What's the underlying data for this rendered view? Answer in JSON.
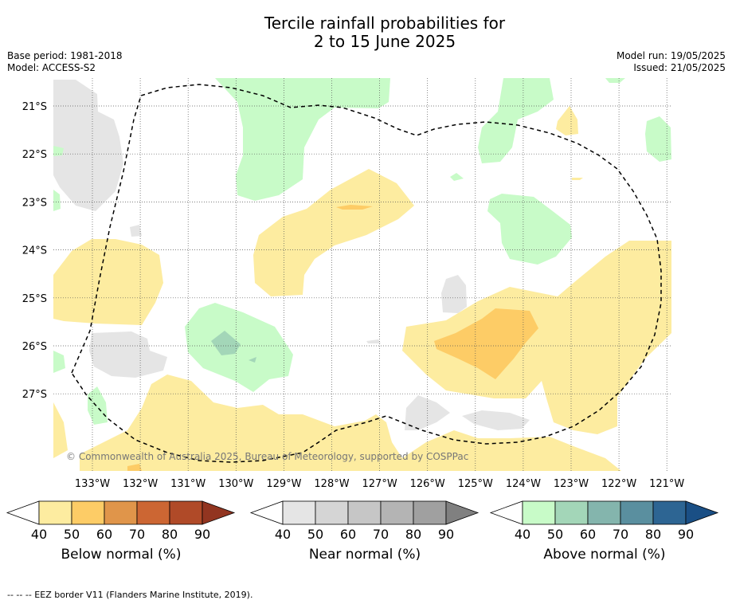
{
  "title_line1": "Tercile rainfall probabilities for",
  "title_line2": "2 to 15 June 2025",
  "base_period": "Base period: 1981-2018",
  "model": "Model: ACCESS-S2",
  "model_run": "Model run: 19/05/2025",
  "issued": "Issued: 21/05/2025",
  "copyright": "© Commonwealth of Australia 2025, Bureau of Meteorology, supported by COSPPac",
  "footnote": "-- -- -- EEZ border V11 (Flanders Marine Institute, 2019).",
  "map": {
    "lon_labels": [
      "133°W",
      "132°W",
      "131°W",
      "130°W",
      "129°W",
      "128°W",
      "127°W",
      "126°W",
      "125°W",
      "124°W",
      "123°W",
      "122°W",
      "121°W"
    ],
    "lat_labels": [
      "21°S",
      "22°S",
      "23°S",
      "24°S",
      "25°S",
      "26°S",
      "27°S"
    ]
  },
  "colorbars": [
    {
      "label": "Below normal (%)",
      "ticks": [
        "40",
        "50",
        "60",
        "70",
        "80",
        "90"
      ],
      "colors": [
        "#ffffff",
        "#fdeca0",
        "#fdcc66",
        "#e0954a",
        "#cc6633",
        "#b04a28",
        "#923520"
      ]
    },
    {
      "label": "Near normal (%)",
      "ticks": [
        "40",
        "50",
        "60",
        "70",
        "80",
        "90"
      ],
      "colors": [
        "#ffffff",
        "#e5e5e5",
        "#d5d5d5",
        "#c6c6c6",
        "#b4b4b4",
        "#a0a0a0",
        "#808080"
      ]
    },
    {
      "label": "Above normal (%)",
      "ticks": [
        "40",
        "50",
        "60",
        "70",
        "80",
        "90"
      ],
      "colors": [
        "#ffffff",
        "#c8fbc8",
        "#a3d6b8",
        "#84b5ad",
        "#5a8f9f",
        "#2d6593",
        "#1a4f85"
      ]
    }
  ]
}
